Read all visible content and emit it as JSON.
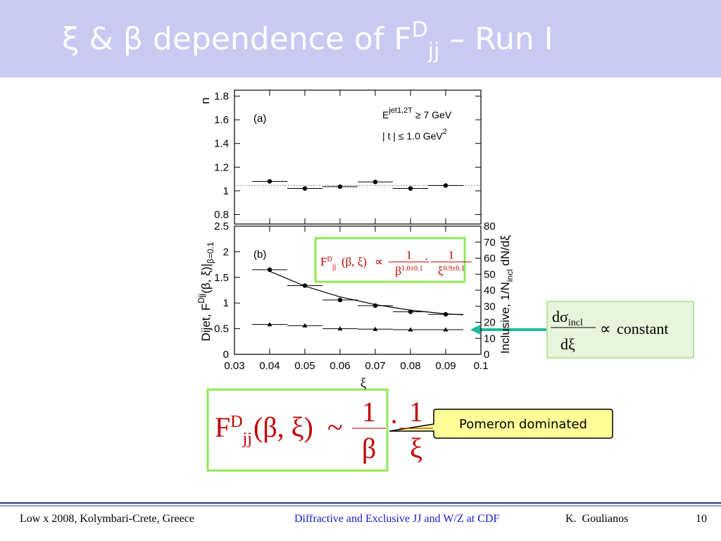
{
  "title": {
    "text": "ξ & β dependence of F",
    "sup": "D",
    "sub": "jj",
    "suffix": " – Run I"
  },
  "chart_data": [
    {
      "type": "scatter",
      "panel_label": "(a)",
      "ylabel": "n",
      "annotations": [
        {
          "text": "E",
          "sup": "jet1,2",
          "sub": "T",
          "rest": " ≥ 7 GeV"
        },
        {
          "text": "| t | ≤ 1.0 GeV",
          "sup": "2"
        }
      ],
      "x": [
        0.04,
        0.05,
        0.06,
        0.07,
        0.08,
        0.09
      ],
      "xlim": [
        0.03,
        0.1
      ],
      "ylim": [
        0.72,
        1.85
      ],
      "yticks": [
        0.8,
        1,
        1.2,
        1.4,
        1.6,
        1.8
      ],
      "reference_line": 1.045,
      "series": [
        {
          "color": "#000000",
          "marker": "circle",
          "values": [
            1.08,
            1.02,
            1.035,
            1.075,
            1.02,
            1.045
          ],
          "xerr": [
            0.005,
            0.005,
            0.005,
            0.005,
            0.005,
            0.005
          ]
        }
      ]
    },
    {
      "type": "scatter",
      "panel_label": "(b)",
      "xlabel": "ξ",
      "ylabel": {
        "text": "Dijet, F",
        "sup": "D",
        "sub": "jj",
        "mid": "(β, ξ)|",
        "sub2": "β=0.1"
      },
      "y2label": {
        "text": "Inclusive, 1/N",
        "sub": "incl",
        "rest": " dN/dξ"
      },
      "x": [
        0.04,
        0.05,
        0.06,
        0.07,
        0.08,
        0.09
      ],
      "xlim": [
        0.03,
        0.1
      ],
      "xticks": [
        0.03,
        0.04,
        0.05,
        0.06,
        0.07,
        0.08,
        0.09,
        0.1
      ],
      "ylim": [
        0,
        2.5
      ],
      "yticks": [
        0,
        0.5,
        1,
        1.5,
        2,
        2.5
      ],
      "y2lim": [
        0,
        80
      ],
      "y2ticks": [
        0,
        10,
        20,
        30,
        40,
        50,
        60,
        70,
        80
      ],
      "series": [
        {
          "color": "#000000",
          "marker": "circle",
          "values": [
            1.65,
            1.34,
            1.06,
            0.95,
            0.83,
            0.78
          ],
          "xerr": [
            0.005,
            0.005,
            0.005,
            0.005,
            0.005,
            0.005
          ]
        },
        {
          "color": "#000000",
          "marker": "line",
          "x": [
            0.04,
            0.05,
            0.06,
            0.07,
            0.08,
            0.09,
            0.095
          ],
          "values": [
            1.62,
            1.33,
            1.12,
            0.97,
            0.86,
            0.79,
            0.77
          ]
        },
        {
          "color": "#000000",
          "marker": "triangle",
          "axis": "y2",
          "values": [
            18.6,
            17.9,
            16,
            15.7,
            15.4,
            15.4
          ],
          "xerr": [
            0.005,
            0.005,
            0.005,
            0.005,
            0.005,
            0.005
          ]
        }
      ]
    }
  ],
  "inset_formula": {
    "lhs": "F",
    "lhs_sup": "D",
    "lhs_sub": "jj",
    "args": "(β, ξ)",
    "relation": "∝",
    "frac1_num": "1",
    "frac1_den": "β",
    "frac1_den_sup": "1.0±0.1",
    "dot": "·",
    "frac2_num": "1",
    "frac2_den": "ξ",
    "frac2_den_sup": "0.9±0.1"
  },
  "inclusive_formula": {
    "num": "dσ",
    "num_sub": "incl",
    "den": "dξ",
    "relation": "∝",
    "rhs": "constant"
  },
  "main_formula": {
    "lhs": "F",
    "lhs_sup": "D",
    "lhs_sub": "jj",
    "args": "(β, ξ)",
    "relation": "~",
    "frac1_num": "1",
    "frac1_den": "β",
    "dot": "·",
    "frac2_num": "1",
    "frac2_den": "ξ"
  },
  "callout": "Pomeron dominated",
  "footer": {
    "left": "Low x 2008, Kolymbari-Crete, Greece",
    "center": "Diffractive and Exclusive JJ and W/Z at CDF",
    "author": "K.  Goulianos",
    "page": "10"
  }
}
